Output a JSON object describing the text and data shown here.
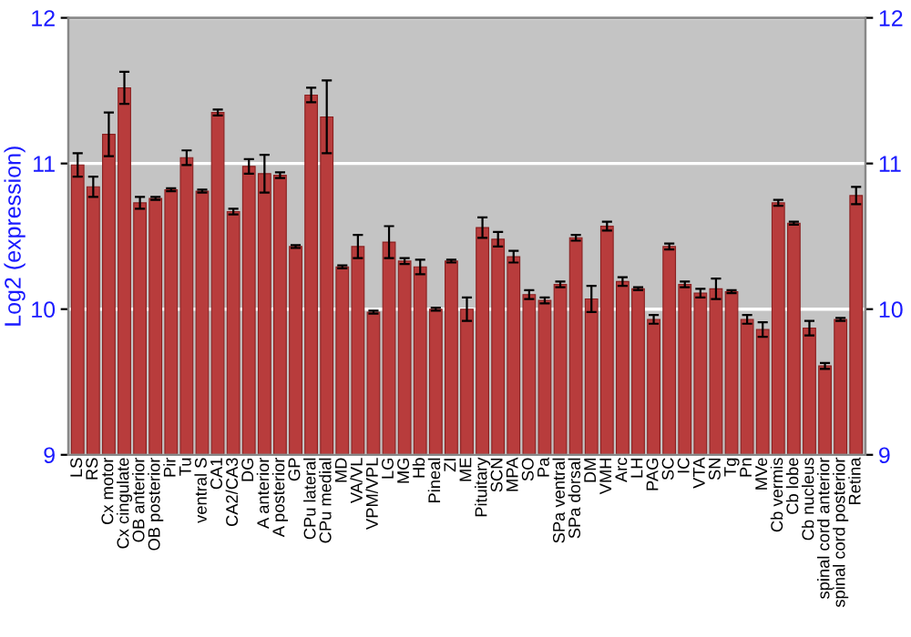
{
  "chart_data": {
    "type": "bar",
    "ylabel": "Log2 (expression)",
    "categories": [
      "LS",
      "RS",
      "Cx motor",
      "Cx cingulate",
      "OB anterior",
      "OB posterior",
      "Pir",
      "Tu",
      "ventral S",
      "CA1",
      "CA2/CA3",
      "DG",
      "A anterior",
      "A posterior",
      "GP",
      "CPu lateral",
      "CPu medial",
      "MD",
      "VA/VL",
      "VPM/VPL",
      "LG",
      "MG",
      "Hb",
      "Pineal",
      "ZI",
      "ME",
      "Pituitary",
      "SCN",
      "MPA",
      "SO",
      "Pa",
      "SPa ventral",
      "SPa dorsal",
      "DM",
      "VMH",
      "Arc",
      "LH",
      "PAG",
      "SC",
      "IC",
      "VTA",
      "SN",
      "Tg",
      "Pn",
      "MVe",
      "Cb vermis",
      "Cb lobe",
      "Cb nucleus",
      "spinal cord anterior",
      "spinal cord posterior",
      "Retina"
    ],
    "values": [
      10.99,
      10.84,
      11.2,
      11.52,
      10.73,
      10.76,
      10.82,
      11.04,
      10.81,
      11.35,
      10.67,
      10.98,
      10.93,
      10.92,
      10.43,
      11.47,
      11.32,
      10.29,
      10.43,
      9.98,
      10.46,
      10.33,
      10.29,
      10.0,
      10.33,
      10.0,
      10.56,
      10.48,
      10.36,
      10.1,
      10.06,
      10.17,
      10.49,
      10.07,
      10.57,
      10.19,
      10.14,
      9.93,
      10.43,
      10.17,
      10.11,
      10.14,
      10.12,
      9.93,
      9.86,
      10.73,
      10.59,
      9.87,
      9.61,
      9.93,
      10.78
    ],
    "errors": [
      0.08,
      0.07,
      0.15,
      0.11,
      0.04,
      0.01,
      0.01,
      0.05,
      0.01,
      0.02,
      0.02,
      0.05,
      0.13,
      0.02,
      0.01,
      0.05,
      0.25,
      0.01,
      0.08,
      0.01,
      0.11,
      0.02,
      0.05,
      0.01,
      0.01,
      0.08,
      0.07,
      0.05,
      0.04,
      0.03,
      0.02,
      0.02,
      0.02,
      0.09,
      0.03,
      0.03,
      0.01,
      0.03,
      0.02,
      0.02,
      0.03,
      0.07,
      0.01,
      0.03,
      0.05,
      0.02,
      0.01,
      0.05,
      0.02,
      0.01,
      0.06
    ],
    "color": "#b83c3c",
    "ylim": [
      9,
      12
    ],
    "yticks": [
      9,
      10,
      11,
      12
    ],
    "y2lim": [
      9,
      12
    ],
    "y2ticks": [
      9,
      10,
      11,
      12
    ],
    "grid": "y"
  }
}
